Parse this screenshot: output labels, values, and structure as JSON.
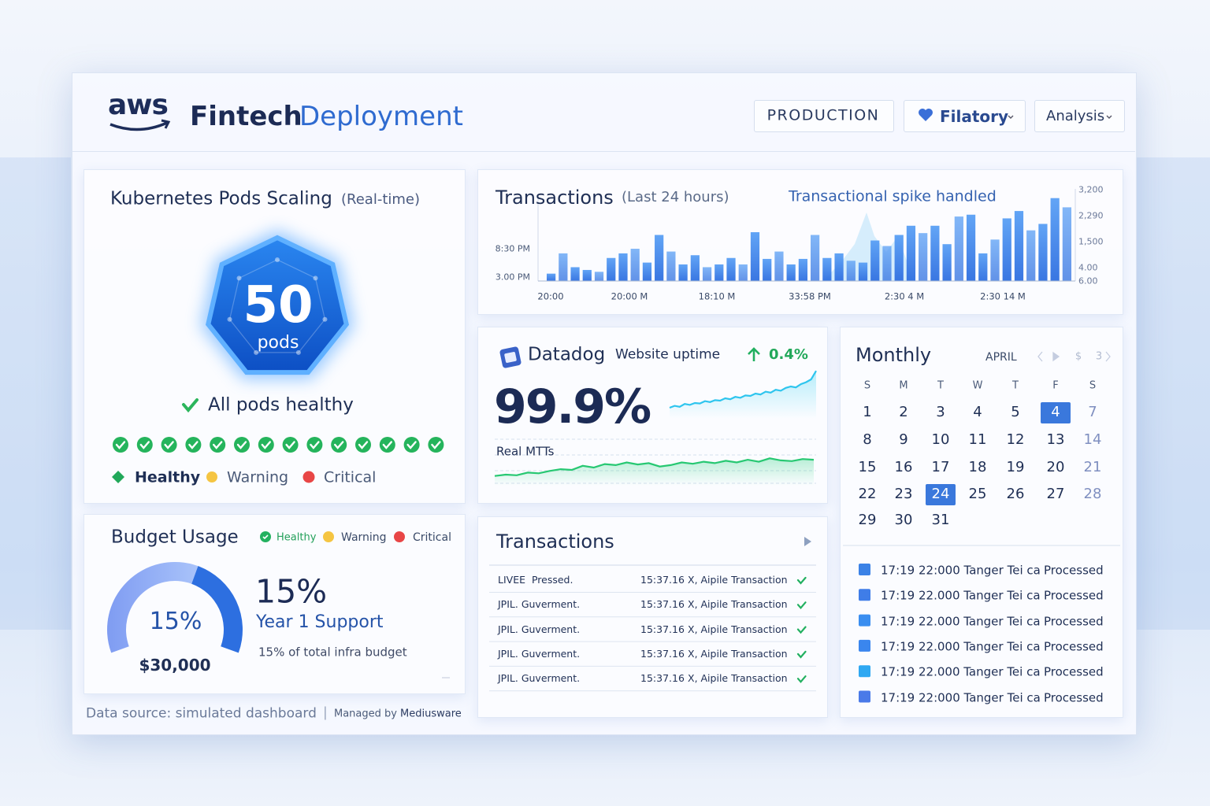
{
  "header": {
    "logo": "aws",
    "title": [
      "Fintech",
      "Deployment"
    ],
    "buttons": [
      "PRODUCTION",
      "Filatory",
      "Analysis"
    ]
  },
  "pods": {
    "title": "Kubernetes Pods Scaling",
    "subtitle": "(Real-time)",
    "count": "50",
    "unit": "pods",
    "status": "All pods healthy",
    "legend": [
      "Healthy",
      "Warning",
      "Critical"
    ]
  },
  "budget": {
    "title": "Budget Usage",
    "legend": [
      "Healthy",
      "Warning",
      "Critical"
    ],
    "gauge_label": "15%",
    "amount": "$30,000",
    "percent": "15%",
    "plan": "Year 1 Support",
    "note": "15% of total infra budget"
  },
  "footer": {
    "source": "Data source: simulated dashboard",
    "separator": "|",
    "managed": "Managed by",
    "company": "Mediusware"
  },
  "transactions_chart": {
    "title": "Transactions",
    "subtitle": "(Last 24 hours)",
    "annotation": "Transactional spike handled",
    "left_labels": [
      "8:30 PM",
      "3.00 PM"
    ],
    "right_labels": [
      "3,200",
      "2,290",
      "1,500",
      "4.00",
      "6.00"
    ],
    "x_labels": [
      "20:00",
      "20:00 M",
      "18:10 M",
      "33:58 PM",
      "2:30 4 M",
      "2:30 14 M"
    ],
    "ylim": [
      0,
      100
    ],
    "values": [
      8,
      30,
      15,
      12,
      10,
      25,
      30,
      35,
      20,
      50,
      32,
      18,
      28,
      15,
      18,
      25,
      18,
      53,
      24,
      32,
      18,
      24,
      50,
      25,
      30,
      22,
      20,
      44,
      38,
      50,
      60,
      52,
      60,
      40,
      70,
      72,
      30,
      45,
      68,
      76,
      55,
      62,
      90,
      80
    ]
  },
  "datadog": {
    "brand": "Datadog",
    "metric": "Website uptime",
    "change": "0.4%",
    "uptime": "99.9%",
    "mtts_label": "Real MTTs",
    "uptime_line": {
      "ylim": [
        0,
        100
      ],
      "values": [
        10,
        14,
        12,
        18,
        16,
        20,
        19,
        24,
        22,
        26,
        25,
        30,
        28,
        33,
        31,
        36,
        35,
        40,
        38,
        44,
        42,
        48,
        46,
        52,
        55,
        53,
        60,
        64,
        70,
        88
      ]
    },
    "mtts_line": {
      "ylim": [
        0,
        100
      ],
      "values": [
        10,
        14,
        12,
        20,
        18,
        25,
        30,
        28,
        40,
        35,
        45,
        42,
        50,
        44,
        48,
        38,
        42,
        50,
        46,
        52,
        48,
        55,
        50,
        58,
        52,
        62,
        56,
        54,
        60,
        58
      ]
    }
  },
  "transactions_table": {
    "title": "Transactions",
    "rows": [
      {
        "name": "LIVEE  Pressed.",
        "time": "15:37.16",
        "desc": "X, Aipile Transaction"
      },
      {
        "name": "JPIL. Guverment.",
        "time": "15:37.16",
        "desc": "X, Aipile Transaction"
      },
      {
        "name": "JPIL. Guverment.",
        "time": "15:37.16",
        "desc": "X, Aipile Transaction"
      },
      {
        "name": "JPIL. Guverment.",
        "time": "15:37.16",
        "desc": "X, Aipile Transaction"
      },
      {
        "name": "JPIL. Guverment.",
        "time": "15:37.16",
        "desc": "X, Aipile Transaction"
      }
    ]
  },
  "monthly": {
    "title": "Monthly",
    "month": "APRIL",
    "nav": [
      "$",
      "3"
    ],
    "weekdays": [
      "S",
      "M",
      "T",
      "W",
      "T",
      "F",
      "S"
    ],
    "weeks": [
      [
        "1",
        "2",
        "3",
        "4",
        "5",
        "4",
        "7"
      ],
      [
        "8",
        "9",
        "10",
        "11",
        "12",
        "13",
        "14"
      ],
      [
        "15",
        "16",
        "17",
        "18",
        "19",
        "20",
        "21"
      ],
      [
        "22",
        "23",
        "24",
        "25",
        "26",
        "27",
        "28"
      ],
      [
        "29",
        "30",
        "31"
      ]
    ],
    "selected": [
      [
        0,
        5
      ],
      [
        3,
        2
      ]
    ],
    "events": [
      {
        "time": "17:19 22:000 Tanger Tei ca",
        "status": "Processed"
      },
      {
        "time": "17:19 22.000 Tanger Tei ca",
        "status": "Processed"
      },
      {
        "time": "17:19 22.000 Tanger Tei ca",
        "status": "Processed"
      },
      {
        "time": "17:19 22.000 Tanger Tei ca",
        "status": "Processed"
      },
      {
        "time": "17:19 22.000 Tanger Tei ca",
        "status": "Processed"
      },
      {
        "time": "17:19 22:000 Tanger Tei ca",
        "status": "Processed"
      }
    ]
  }
}
